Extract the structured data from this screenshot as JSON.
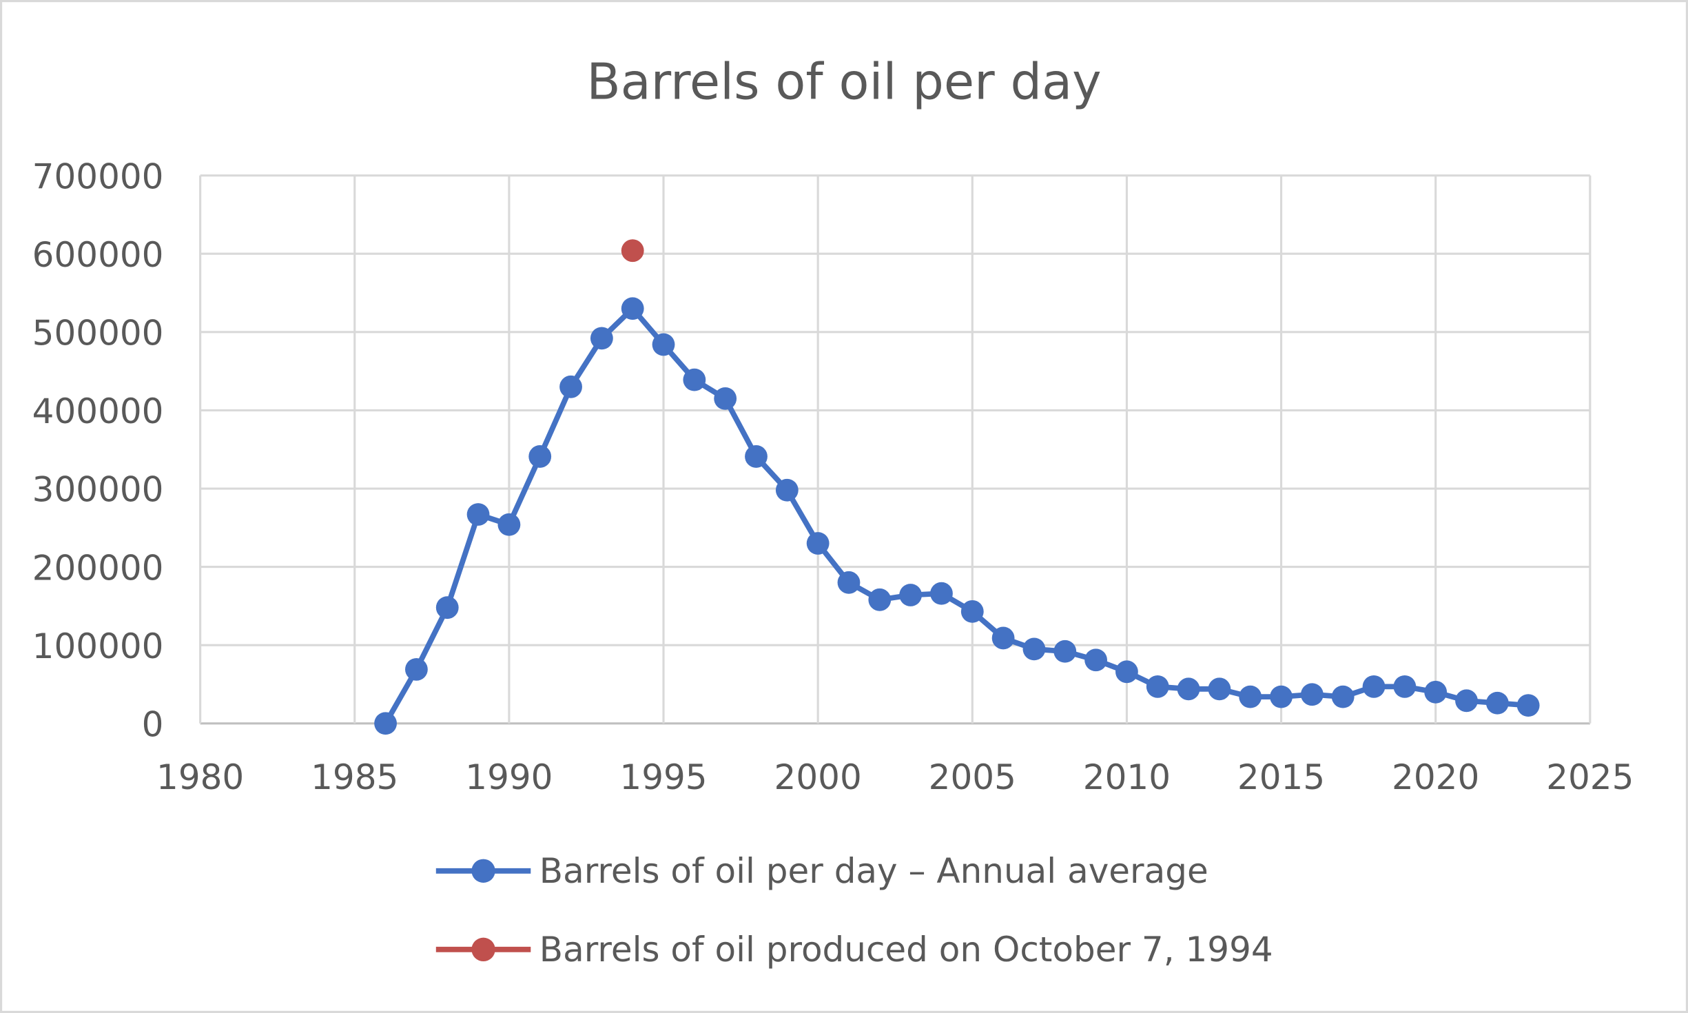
{
  "chart_data": {
    "type": "line",
    "title": "Barrels of oil per day",
    "xlabel": "",
    "ylabel": "",
    "xlim": [
      1980,
      2025
    ],
    "ylim": [
      0,
      700000
    ],
    "xticks": [
      "1980",
      "1985",
      "1990",
      "1995",
      "2000",
      "2005",
      "2010",
      "2015",
      "2020",
      "2025"
    ],
    "yticks": [
      "0",
      "100000",
      "200000",
      "300000",
      "400000",
      "500000",
      "600000",
      "700000"
    ],
    "grid": true,
    "legend_position": "bottom",
    "series": [
      {
        "name": "Barrels of oil per day – Annual average",
        "color": "#4472C4",
        "marker": "circle",
        "line": true,
        "x": [
          1986,
          1987,
          1988,
          1989,
          1990,
          1991,
          1992,
          1993,
          1994,
          1995,
          1996,
          1997,
          1998,
          1999,
          2000,
          2001,
          2002,
          2003,
          2004,
          2005,
          2006,
          2007,
          2008,
          2009,
          2010,
          2011,
          2012,
          2013,
          2014,
          2015,
          2016,
          2017,
          2018,
          2019,
          2020,
          2021,
          2022,
          2023
        ],
        "y": [
          0,
          69000,
          148000,
          267000,
          254000,
          341000,
          430000,
          492000,
          530000,
          484000,
          439000,
          415000,
          341000,
          298000,
          230000,
          180000,
          158000,
          164000,
          166000,
          143000,
          109000,
          95000,
          92000,
          81000,
          66000,
          47000,
          44000,
          44000,
          34000,
          34000,
          37000,
          34000,
          47000,
          47000,
          40000,
          29000,
          26000,
          23000
        ]
      },
      {
        "name": "Barrels of oil produced on October 7, 1994",
        "color": "#C0504D",
        "marker": "circle",
        "line": false,
        "x": [
          1994
        ],
        "y": [
          604000
        ]
      }
    ]
  }
}
